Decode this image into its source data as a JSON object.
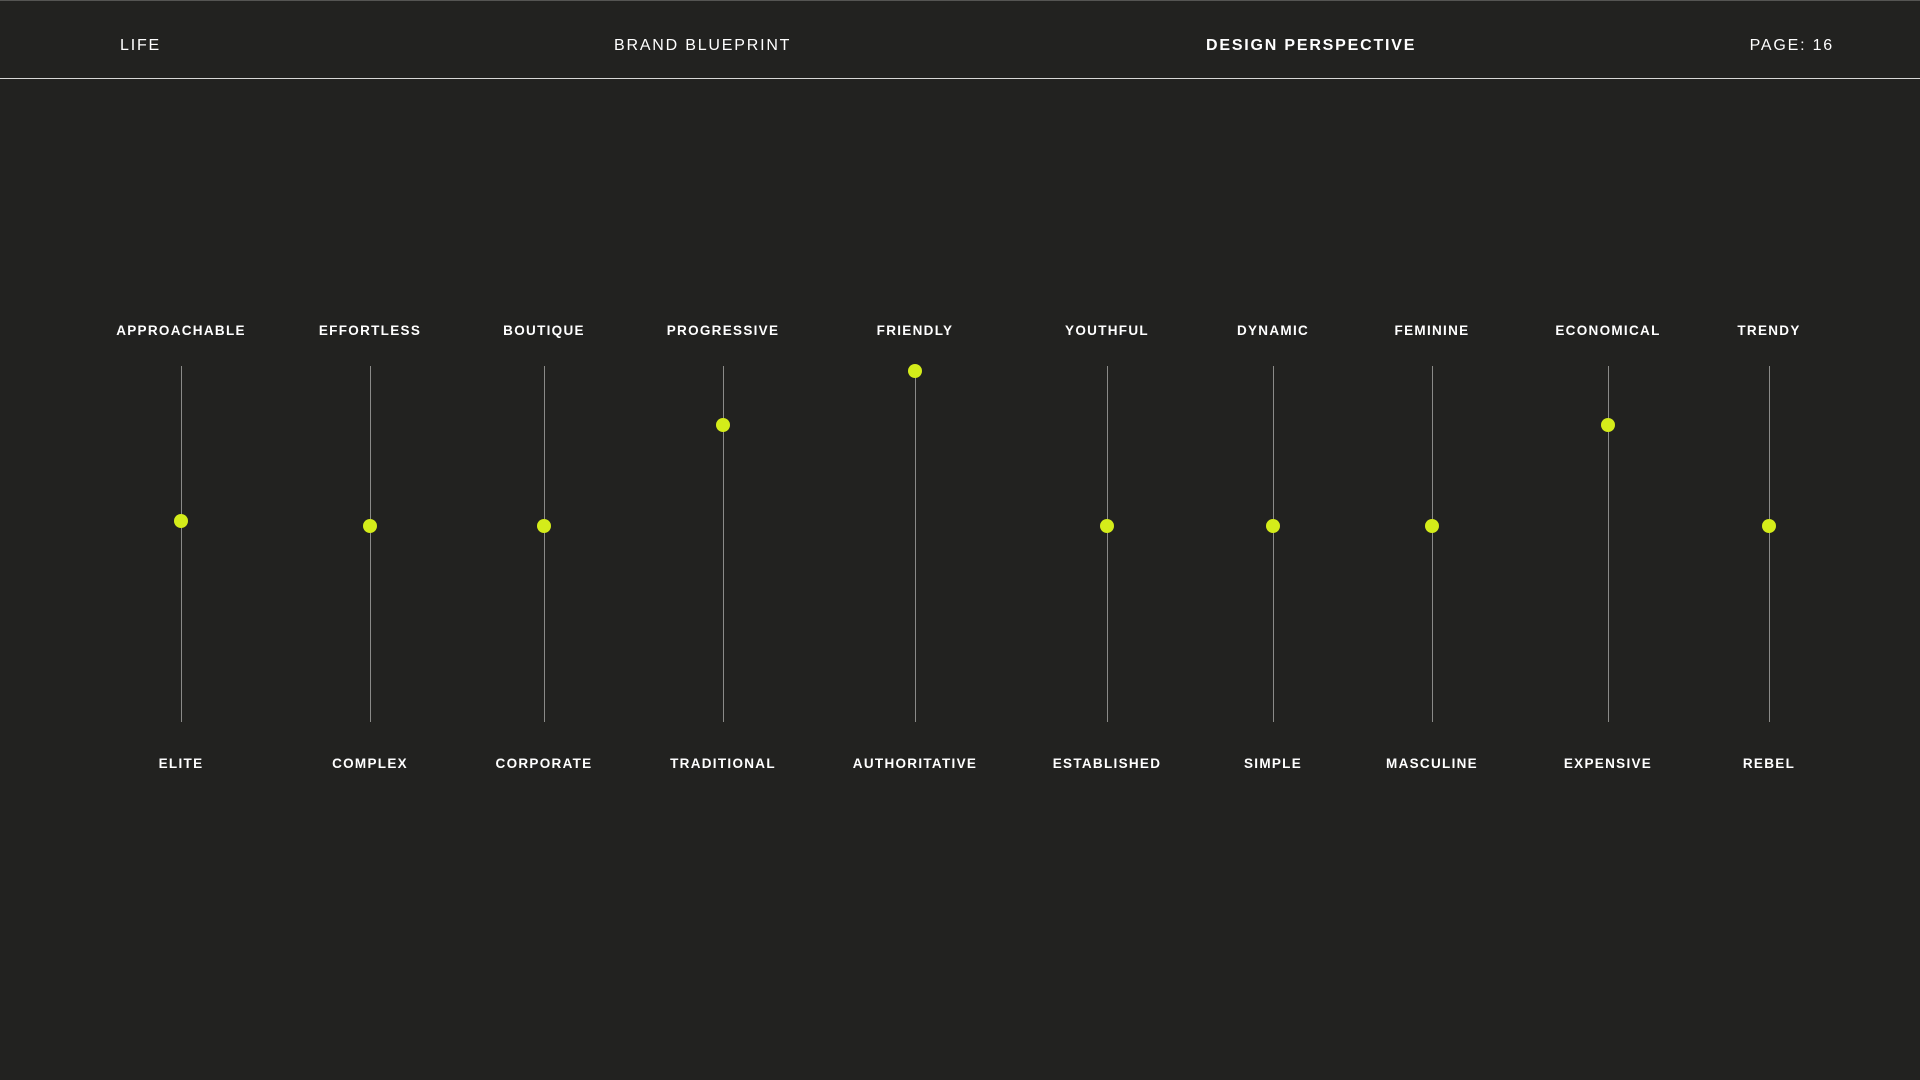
{
  "header": {
    "left": "LIFE",
    "brand": "BRAND BLUEPRINT",
    "section": "DESIGN PERSPECTIVE",
    "page": "PAGE: 16"
  },
  "accent_color": "#d4ec1a",
  "scales": [
    {
      "top": "APPROACHABLE",
      "bottom": "ELITE",
      "value": 0.565
    },
    {
      "top": "EFFORTLESS",
      "bottom": "COMPLEX",
      "value": 0.55
    },
    {
      "top": "BOUTIQUE",
      "bottom": "CORPORATE",
      "value": 0.55
    },
    {
      "top": "PROGRESSIVE",
      "bottom": "TRADITIONAL",
      "value": 0.835
    },
    {
      "top": "FRIENDLY",
      "bottom": "AUTHORITATIVE",
      "value": 0.985
    },
    {
      "top": "YOUTHFUL",
      "bottom": "ESTABLISHED",
      "value": 0.55
    },
    {
      "top": "DYNAMIC",
      "bottom": "SIMPLE",
      "value": 0.55
    },
    {
      "top": "FEMININE",
      "bottom": "MASCULINE",
      "value": 0.55
    },
    {
      "top": "ECONOMICAL",
      "bottom": "EXPENSIVE",
      "value": 0.835
    },
    {
      "top": "TRENDY",
      "bottom": "REBEL",
      "value": 0.55
    }
  ]
}
